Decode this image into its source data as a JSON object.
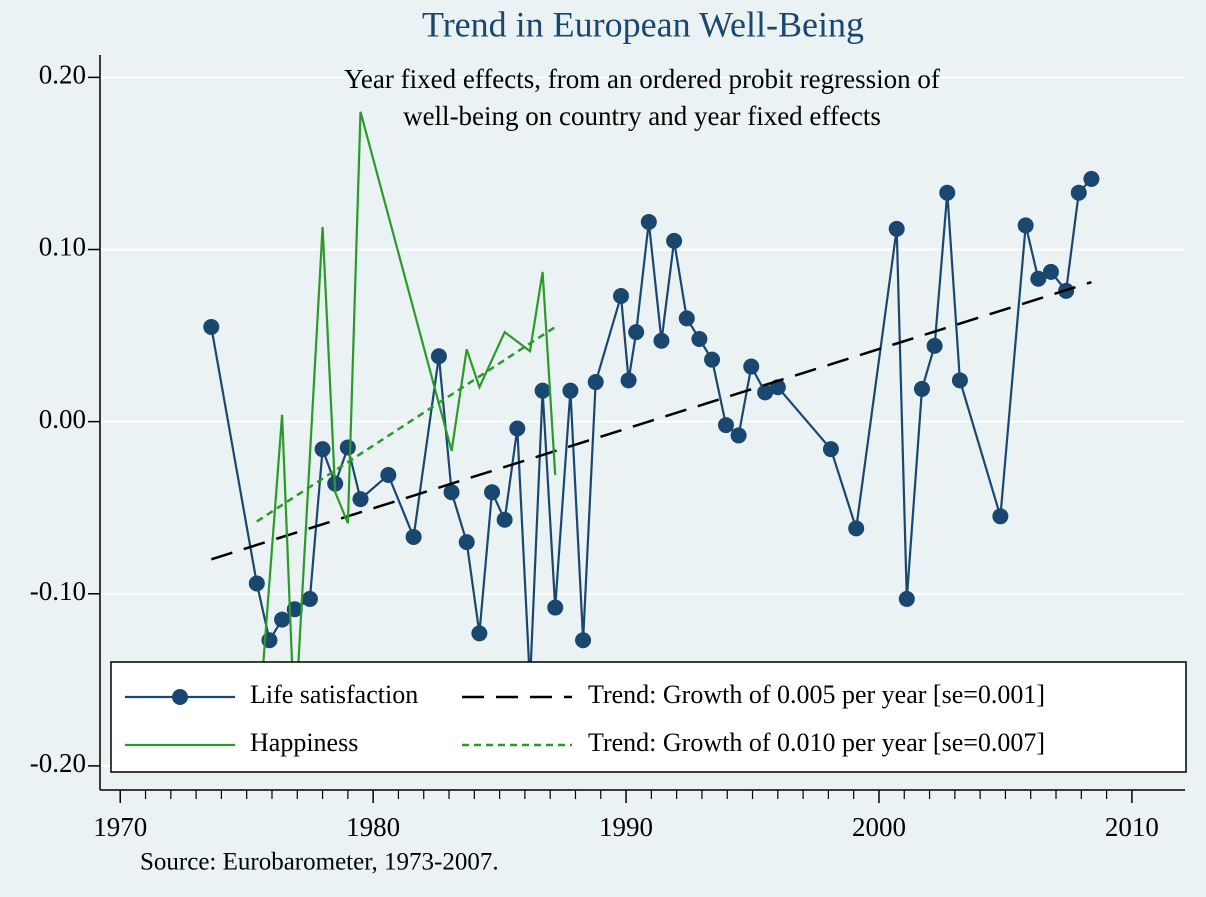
{
  "chart_data": {
    "type": "line",
    "title": "Trend in European Well-Being",
    "annotation": [
      "Year fixed effects, from an ordered probit regression of",
      "well-being on country and year fixed effects"
    ],
    "note": "Source: Eurobarometer, 1973-2007.",
    "xlim": [
      1969.2,
      2012.1
    ],
    "ylim": [
      -0.214,
      0.213
    ],
    "xticks": [
      1970,
      1980,
      1990,
      2000,
      2010
    ],
    "xminorticks": [
      1971,
      1972,
      1973,
      1974,
      1975,
      1976,
      1977,
      1978,
      1979,
      1981,
      1982,
      1983,
      1984,
      1985,
      1986,
      1987,
      1988,
      1989,
      1991,
      1992,
      1993,
      1994,
      1995,
      1996,
      1997,
      1998,
      1999,
      2001,
      2002,
      2003,
      2004,
      2005,
      2006,
      2007,
      2008,
      2009
    ],
    "yticks": [
      {
        "value": 0.2,
        "label": "0.20"
      },
      {
        "value": 0.1,
        "label": "0.10"
      },
      {
        "value": 0,
        "label": "0.00"
      },
      {
        "value": -0.1,
        "label": "-0.10"
      },
      {
        "value": -0.2,
        "label": "-0.20"
      }
    ],
    "grid": true,
    "legend": "bottom",
    "series": [
      {
        "name": "Life satisfaction",
        "color": "#1a476f",
        "marker": "circle",
        "line_style": "solid",
        "x": [
          1973.6,
          1975.4,
          1975.9,
          1976.4,
          1976.9,
          1977.5,
          1978.0,
          1978.5,
          1979.0,
          1979.5,
          1980.6,
          1981.6,
          1982.6,
          1983.1,
          1983.7,
          1984.2,
          1984.7,
          1985.2,
          1985.7,
          1986.2,
          1986.7,
          1987.2,
          1987.8,
          1988.3,
          1988.8,
          1989.8,
          1990.1,
          1990.4,
          1990.9,
          1991.4,
          1991.9,
          1992.4,
          1992.9,
          1993.4,
          1993.95,
          1994.45,
          1994.95,
          1995.5,
          1996.0,
          1998.1,
          1999.1,
          2000.7,
          2001.1,
          2001.7,
          2002.2,
          2002.7,
          2003.2,
          2004.8,
          2005.8,
          2006.3,
          2006.8,
          2007.4,
          2007.9,
          2008.4
        ],
        "values": [
          0.055,
          -0.094,
          -0.127,
          -0.115,
          -0.109,
          -0.103,
          -0.016,
          -0.036,
          -0.015,
          -0.045,
          -0.031,
          -0.067,
          0.038,
          -0.041,
          -0.07,
          -0.123,
          -0.041,
          -0.057,
          -0.004,
          -0.152,
          0.018,
          -0.108,
          0.018,
          -0.127,
          0.023,
          0.073,
          0.024,
          0.052,
          0.116,
          0.047,
          0.105,
          0.06,
          0.048,
          0.036,
          -0.002,
          -0.008,
          0.032,
          0.017,
          0.02,
          -0.016,
          -0.062,
          0.112,
          -0.103,
          0.019,
          0.044,
          0.133,
          0.024,
          -0.055,
          0.114,
          0.083,
          0.087,
          0.076,
          0.133,
          0.141
        ]
      },
      {
        "name": "Trend: Growth of 0.005 per year [se=0.001]",
        "color": "#000000",
        "line_style": "dashed",
        "x": [
          1973.6,
          2008.4
        ],
        "values": [
          -0.08,
          0.081
        ]
      },
      {
        "name": "Happiness",
        "color": "#2a9a2a",
        "line_style": "solid",
        "x": [
          1975.4,
          1976.4,
          1976.9,
          1978.0,
          1978.5,
          1979.0,
          1979.5,
          1983.1,
          1983.7,
          1984.2,
          1985.2,
          1986.2,
          1986.7,
          1987.2
        ],
        "values": [
          -0.19,
          0.004,
          -0.179,
          0.113,
          -0.041,
          -0.059,
          0.18,
          -0.017,
          0.042,
          0.02,
          0.052,
          0.041,
          0.087,
          -0.031
        ]
      },
      {
        "name": "Trend: Growth of 0.010 per year [se=0.007]",
        "color": "#2a9a2a",
        "line_style": "dotted",
        "x": [
          1975.4,
          1987.2
        ],
        "values": [
          -0.058,
          0.055
        ]
      }
    ]
  }
}
